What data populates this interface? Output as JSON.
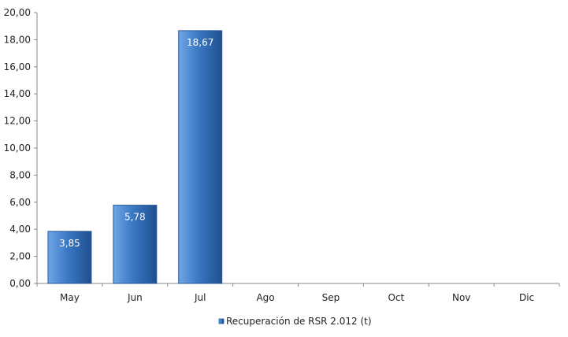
{
  "chart_data": {
    "type": "bar",
    "categories": [
      "May",
      "Jun",
      "Jul",
      "Ago",
      "Sep",
      "Oct",
      "Nov",
      "Dic"
    ],
    "values": [
      3.85,
      5.78,
      18.67,
      null,
      null,
      null,
      null,
      null
    ],
    "data_labels": [
      "3,85",
      "5,78",
      "18,67",
      "",
      "",
      "",
      "",
      ""
    ],
    "series": [
      {
        "name": "Recuperación de RSR 2.012 (t)",
        "values": [
          3.85,
          5.78,
          18.67,
          null,
          null,
          null,
          null,
          null
        ]
      }
    ],
    "ylim": [
      0,
      20
    ],
    "yticks": [
      0,
      2,
      4,
      6,
      8,
      10,
      12,
      14,
      16,
      18,
      20
    ],
    "ytick_labels": [
      "0,00",
      "2,00",
      "4,00",
      "6,00",
      "8,00",
      "10,00",
      "12,00",
      "14,00",
      "16,00",
      "18,00",
      "20,00"
    ],
    "grid": false,
    "legend_position": "bottom",
    "colors": {
      "bar": "#3a78c4",
      "bar_light": "#6fa6e6",
      "bar_dark": "#1f4f8f",
      "bar_border": "#2a5a9a",
      "axis": "#888888"
    }
  }
}
